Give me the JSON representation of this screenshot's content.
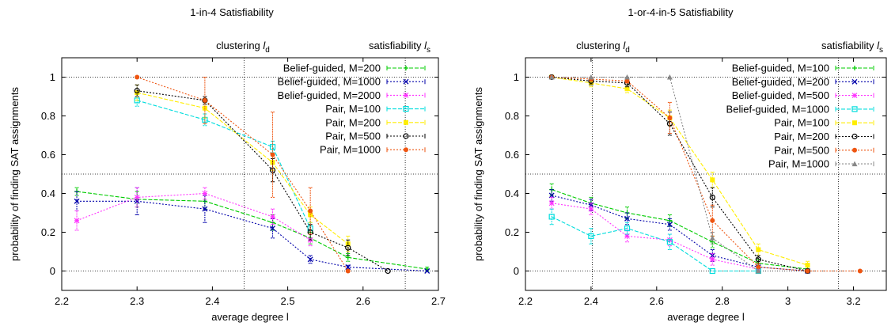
{
  "chart_data": [
    {
      "type": "line",
      "title": "1-in-4 Satisfiability",
      "xlabel": "average degree l",
      "ylabel": "probability of finding SAT assignments",
      "xlim": [
        2.2,
        2.7
      ],
      "ylim": [
        -0.1,
        1.1
      ],
      "xticks": [
        2.2,
        2.3,
        2.4,
        2.5,
        2.6,
        2.7
      ],
      "xtick_labels": [
        "2.2",
        "2.3",
        "2.4",
        "2.5",
        "2.6",
        "2.7"
      ],
      "yticks": [
        0,
        0.2,
        0.4,
        0.6,
        0.8,
        1
      ],
      "ytick_labels": [
        "0",
        "0.2",
        "0.4",
        "0.6",
        "0.8",
        "1"
      ],
      "hlines": [
        0,
        0.5,
        1
      ],
      "vlines": [
        {
          "x": 2.442,
          "label_main": "clustering ",
          "label_var": "l",
          "label_sub": "d"
        },
        {
          "x": 2.656,
          "label_main": "satisfiability ",
          "label_var": "l",
          "label_sub": "s"
        }
      ],
      "legend_position": "top-right",
      "series": [
        {
          "name": "Belief-guided, M=200",
          "color": "#00cc00",
          "marker": "plus",
          "dash": "5,2",
          "x": [
            2.22,
            2.3,
            2.39,
            2.48,
            2.53,
            2.58,
            2.685
          ],
          "y": [
            0.41,
            0.37,
            0.36,
            0.25,
            0.17,
            0.07,
            0.01
          ],
          "err": [
            0.02,
            0.04,
            0.04,
            0.04,
            0.03,
            0.02,
            0.01
          ]
        },
        {
          "name": "Belief-guided, M=1000",
          "color": "#0000aa",
          "marker": "cross",
          "dash": "2,2",
          "x": [
            2.22,
            2.3,
            2.39,
            2.48,
            2.53,
            2.58,
            2.685
          ],
          "y": [
            0.36,
            0.36,
            0.32,
            0.22,
            0.06,
            0.02,
            0.0
          ],
          "err": [
            0.05,
            0.07,
            0.07,
            0.05,
            0.02,
            0.01,
            0.0
          ]
        },
        {
          "name": "Belief-guided, M=2000",
          "color": "#ff33ff",
          "marker": "star",
          "dash": "2,2",
          "x": [
            2.22,
            2.3,
            2.39,
            2.48,
            2.53
          ],
          "y": [
            0.26,
            0.38,
            0.4,
            0.28,
            0.16
          ],
          "err": [
            0.05,
            0.05,
            0.03,
            0.04,
            0.03
          ]
        },
        {
          "name": "Pair, M=100",
          "color": "#00dddd",
          "marker": "square-open",
          "dash": "5,2",
          "x": [
            2.3,
            2.39,
            2.48,
            2.53
          ],
          "y": [
            0.88,
            0.78,
            0.64,
            0.22
          ],
          "err": [
            0.03,
            0.03,
            0.03,
            0.03
          ]
        },
        {
          "name": "Pair, M=200",
          "color": "#ffee00",
          "marker": "square",
          "dash": "5,2",
          "x": [
            2.3,
            2.39,
            2.48,
            2.53,
            2.58
          ],
          "y": [
            0.92,
            0.84,
            0.56,
            0.29,
            0.14
          ],
          "err": [
            0.04,
            0.05,
            0.04,
            0.04,
            0.04
          ]
        },
        {
          "name": "Pair, M=500",
          "color": "#000000",
          "marker": "circle",
          "dash": "2,2",
          "x": [
            2.3,
            2.39,
            2.48,
            2.53,
            2.58,
            2.633
          ],
          "y": [
            0.93,
            0.88,
            0.52,
            0.2,
            0.12,
            0.0
          ],
          "err": [
            0.03,
            0.02,
            0.06,
            0.04,
            0.04,
            0.0
          ]
        },
        {
          "name": "Pair, M=1000",
          "color": "#ee5511",
          "marker": "disc",
          "dash": "2,2",
          "x": [
            2.3,
            2.39,
            2.48,
            2.53,
            2.58
          ],
          "y": [
            1.0,
            0.88,
            0.6,
            0.31,
            0.0
          ],
          "err": [
            0.0,
            0.12,
            0.22,
            0.12,
            0.0
          ]
        }
      ]
    },
    {
      "type": "line",
      "title": "1-or-4-in-5 Satisfiability",
      "xlabel": "average degree l",
      "ylabel": "probability of finding SAT assignments",
      "xlim": [
        2.2,
        3.3
      ],
      "ylim": [
        -0.1,
        1.1
      ],
      "xticks": [
        2.2,
        2.4,
        2.6,
        2.8,
        3.0,
        3.2
      ],
      "xtick_labels": [
        "2.2",
        "2.4",
        "2.6",
        "2.8",
        "3",
        "3.2"
      ],
      "yticks": [
        0,
        0.2,
        0.4,
        0.6,
        0.8,
        1
      ],
      "ytick_labels": [
        "0",
        "0.2",
        "0.4",
        "0.6",
        "0.8",
        "1"
      ],
      "hlines": [
        0,
        0.5,
        1
      ],
      "vlines": [
        {
          "x": 2.404,
          "label_main": "clustering ",
          "label_var": "l",
          "label_sub": "d"
        },
        {
          "x": 3.154,
          "label_main": "satisfiability ",
          "label_var": "l",
          "label_sub": "s"
        }
      ],
      "legend_position": "top-right",
      "series": [
        {
          "name": "Belief-guided, M=100",
          "color": "#00cc00",
          "marker": "plus",
          "dash": "5,2",
          "x": [
            2.28,
            2.4,
            2.51,
            2.64,
            2.77,
            2.91,
            3.06
          ],
          "y": [
            0.42,
            0.35,
            0.3,
            0.26,
            0.15,
            0.04,
            0.01
          ],
          "err": [
            0.03,
            0.03,
            0.03,
            0.03,
            0.03,
            0.02,
            0.01
          ]
        },
        {
          "name": "Belief-guided, M=200",
          "color": "#0000aa",
          "marker": "cross",
          "dash": "2,2",
          "x": [
            2.28,
            2.4,
            2.51,
            2.64,
            2.77,
            2.91,
            3.06
          ],
          "y": [
            0.39,
            0.34,
            0.27,
            0.24,
            0.08,
            0.02,
            0.0
          ],
          "err": [
            0.03,
            0.03,
            0.03,
            0.03,
            0.03,
            0.01,
            0.0
          ]
        },
        {
          "name": "Belief-guided, M=500",
          "color": "#ff33ff",
          "marker": "star",
          "dash": "2,2",
          "x": [
            2.28,
            2.4,
            2.51,
            2.64,
            2.77,
            2.91
          ],
          "y": [
            0.35,
            0.32,
            0.18,
            0.16,
            0.06,
            0.01
          ],
          "err": [
            0.03,
            0.03,
            0.03,
            0.03,
            0.03,
            0.01
          ]
        },
        {
          "name": "Belief-guided, M=1000",
          "color": "#00dddd",
          "marker": "square-open",
          "dash": "5,2",
          "x": [
            2.28,
            2.4,
            2.51,
            2.64,
            2.77,
            2.91
          ],
          "y": [
            0.28,
            0.18,
            0.22,
            0.15,
            0.0,
            0.0
          ],
          "err": [
            0.04,
            0.04,
            0.03,
            0.04,
            0.0,
            0.0
          ]
        },
        {
          "name": "Pair, M=100",
          "color": "#ffee00",
          "marker": "square",
          "dash": "5,2",
          "x": [
            2.28,
            2.4,
            2.51,
            2.64,
            2.77,
            2.91,
            3.06
          ],
          "y": [
            1.0,
            0.97,
            0.94,
            0.79,
            0.47,
            0.11,
            0.03
          ],
          "err": [
            0.0,
            0.02,
            0.02,
            0.04,
            0.04,
            0.03,
            0.02
          ]
        },
        {
          "name": "Pair, M=200",
          "color": "#000000",
          "marker": "circle",
          "dash": "2,2",
          "x": [
            2.28,
            2.4,
            2.51,
            2.64,
            2.77,
            2.91,
            3.06
          ],
          "y": [
            1.0,
            0.98,
            0.97,
            0.76,
            0.38,
            0.06,
            0.0
          ],
          "err": [
            0.0,
            0.02,
            0.02,
            0.06,
            0.05,
            0.02,
            0.0
          ]
        },
        {
          "name": "Pair, M=500",
          "color": "#ee5511",
          "marker": "disc",
          "dash": "2,2",
          "x": [
            2.28,
            2.4,
            2.51,
            2.64,
            2.77,
            2.91,
            3.06,
            3.22
          ],
          "y": [
            1.0,
            0.99,
            0.98,
            0.79,
            0.26,
            0.02,
            0.0,
            0.0
          ],
          "err": [
            0.0,
            0.01,
            0.01,
            0.08,
            0.08,
            0.02,
            0.0,
            0.0
          ]
        },
        {
          "name": "Pair, M=1000",
          "color": "#888888",
          "marker": "triangle",
          "dash": "2,2",
          "x": [
            2.28,
            2.4,
            2.51,
            2.64,
            2.77,
            2.91
          ],
          "y": [
            1.0,
            1.0,
            1.0,
            1.0,
            0.17,
            0.0
          ],
          "err": [
            0.0,
            0.0,
            0.0,
            0.0,
            0.03,
            0.0
          ]
        }
      ]
    }
  ]
}
